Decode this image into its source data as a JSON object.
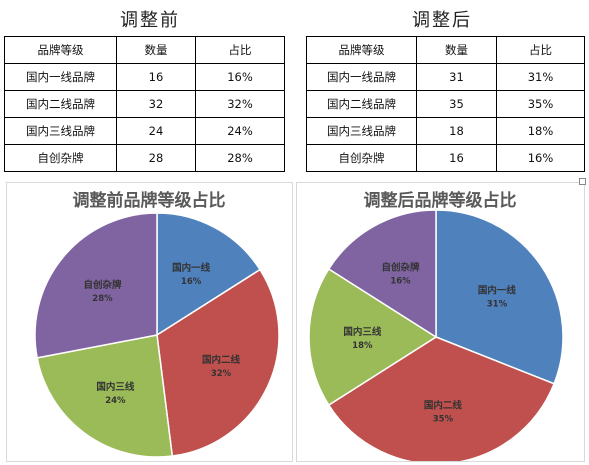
{
  "left": {
    "title": "调整前",
    "table": {
      "headers": [
        "品牌等级",
        "数量",
        "占比"
      ],
      "rows": [
        [
          "国内一线品牌",
          "16",
          "16%"
        ],
        [
          "国内二线品牌",
          "32",
          "32%"
        ],
        [
          "国内三线品牌",
          "24",
          "24%"
        ],
        [
          "自创杂牌",
          "28",
          "28%"
        ]
      ]
    }
  },
  "right": {
    "title": "调整后",
    "table": {
      "headers": [
        "品牌等级",
        "数量",
        "占比"
      ],
      "rows": [
        [
          "国内一线品牌",
          "31",
          "31%"
        ],
        [
          "国内二线品牌",
          "35",
          "35%"
        ],
        [
          "国内三线品牌",
          "18",
          "18%"
        ],
        [
          "自创杂牌",
          "16",
          "16%"
        ]
      ]
    }
  },
  "chart_data": [
    {
      "type": "pie",
      "title": "调整前品牌等级占比",
      "categories": [
        "国内一线",
        "国内二线",
        "国内三线",
        "自创杂牌"
      ],
      "values": [
        16,
        32,
        24,
        28
      ],
      "labels": [
        "16%",
        "32%",
        "24%",
        "28%"
      ],
      "colors": [
        "#4f81bd",
        "#c0504d",
        "#9bbb59",
        "#8064a2"
      ],
      "legend": "none",
      "data_labels": "inside"
    },
    {
      "type": "pie",
      "title": "调整后品牌等级占比",
      "categories": [
        "国内一线",
        "国内二线",
        "国内三线",
        "自创杂牌"
      ],
      "values": [
        31,
        35,
        18,
        16
      ],
      "labels": [
        "31%",
        "35%",
        "18%",
        "16%"
      ],
      "colors": [
        "#4f81bd",
        "#c0504d",
        "#9bbb59",
        "#8064a2"
      ],
      "legend": "none",
      "data_labels": "inside"
    }
  ]
}
